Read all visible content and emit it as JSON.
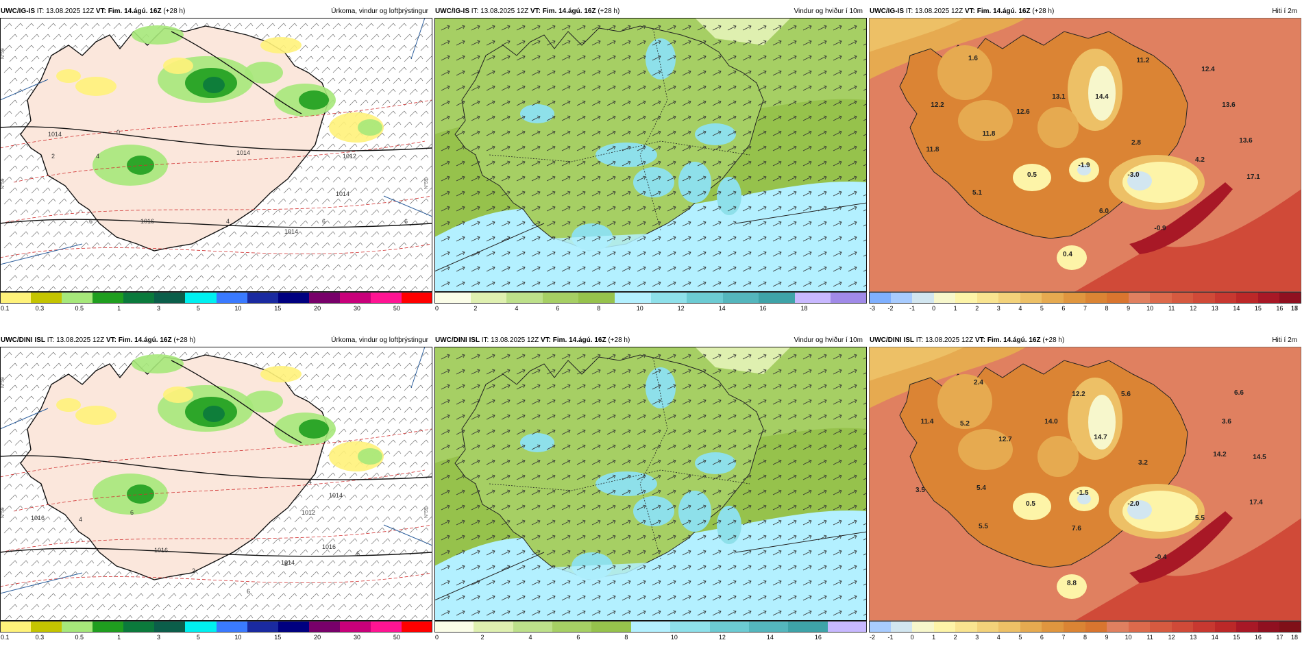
{
  "panels": [
    {
      "id": "igis-precip",
      "model": "UWC/IG-IS",
      "it_label": "IT:",
      "it_value": "13.08.2025 12Z",
      "vt_label": "VT:",
      "vt_value": "Fim. 14.ágú. 16Z",
      "lead": "(+28 h)",
      "title": "Úrkoma, vindur og loftþrýstingur",
      "kind": "precip",
      "isobar_labels": [
        "1014",
        "1014",
        "1016",
        "1014",
        "1012",
        "1014"
      ],
      "temp_contours": [
        "2",
        "4",
        "6",
        "4",
        "6",
        "0",
        "6"
      ],
      "lat_labels": [
        "N°59",
        "N°59",
        "N°59"
      ],
      "colorbar": {
        "colors": [
          "#fff27a",
          "#c4c400",
          "#a6e87a",
          "#1f9e1f",
          "#0b7a3c",
          "#0b5e4a",
          "#00f0f0",
          "#3a7aff",
          "#1a2aa0",
          "#000080",
          "#78006a",
          "#c8007a",
          "#ff1493",
          "#ff0000"
        ],
        "ticks": [
          "0.1",
          "0.3",
          "0.5",
          "1",
          "3",
          "5",
          "10",
          "15",
          "20",
          "30",
          "50"
        ]
      }
    },
    {
      "id": "igis-wind",
      "model": "UWC/IG-IS",
      "it_label": "IT:",
      "it_value": "13.08.2025 12Z",
      "vt_label": "VT:",
      "vt_value": "Fim. 14.ágú. 16Z",
      "lead": "(+28 h)",
      "title": "Vindur og hviður í 10m",
      "kind": "wind",
      "colorbar": {
        "colors": [
          "#fbfde8",
          "#dff0b0",
          "#bde08a",
          "#a6cf64",
          "#96c24c",
          "#b3f0ff",
          "#8ee0ea",
          "#6ccbd3",
          "#54b6bd",
          "#3ea3a8",
          "#c8b8ff",
          "#a08ae8"
        ],
        "ticks": [
          "0",
          "2",
          "4",
          "6",
          "8",
          "10",
          "12",
          "14",
          "16",
          "18"
        ]
      }
    },
    {
      "id": "igis-temp",
      "model": "UWC/IG-IS",
      "it_label": "IT:",
      "it_value": "13.08.2025 12Z",
      "vt_label": "VT:",
      "vt_value": "Fim. 14.ágú. 16Z",
      "lead": "(+28 h)",
      "title": "Hiti í 2m",
      "kind": "temp",
      "temp_labels": [
        "1.6",
        "11.2",
        "12.4",
        "12.2",
        "13.1",
        "14.4",
        "12.6",
        "13.6",
        "11.8",
        "2.8",
        "13.6",
        "11.8",
        "4.2",
        "0.5",
        "-1.9",
        "-3.0",
        "17.1",
        "5.1",
        "6.0",
        "-0.9",
        "0.4"
      ],
      "colorbar": {
        "colors": [
          "#7fb0ff",
          "#a8ccff",
          "#d2e6f0",
          "#f7f7cc",
          "#fdf4a8",
          "#f9e490",
          "#f3d27a",
          "#edc066",
          "#e6aa50",
          "#e0963f",
          "#db8434",
          "#d9752f",
          "#e08060",
          "#dd6a4c",
          "#d65a40",
          "#d04a38",
          "#c83830",
          "#bc2828",
          "#a81826",
          "#901020"
        ],
        "ticks": [
          "-3",
          "-2",
          "-1",
          "0",
          "1",
          "2",
          "3",
          "4",
          "5",
          "6",
          "7",
          "8",
          "9",
          "10",
          "11",
          "12",
          "13",
          "14",
          "15",
          "16",
          "17",
          "18"
        ]
      }
    },
    {
      "id": "dini-precip",
      "model": "UWC/DINI ISL",
      "it_label": "IT:",
      "it_value": "13.08.2025 12Z",
      "vt_label": "VT:",
      "vt_value": "Fim. 14.ágú. 16Z",
      "lead": "(+28 h)",
      "title": "Úrkoma, vindur og loftþrýstingur",
      "kind": "precip",
      "isobar_labels": [
        "1016",
        "1016",
        "1014",
        "1012",
        "1014",
        "1016"
      ],
      "temp_contours": [
        "4",
        "6",
        "6",
        "2",
        "6",
        "4",
        "6"
      ],
      "lat_labels": [
        "N°59",
        "N°59",
        "N°59"
      ],
      "colorbar": {
        "colors": [
          "#fff27a",
          "#c4c400",
          "#a6e87a",
          "#1f9e1f",
          "#0b7a3c",
          "#0b5e4a",
          "#00f0f0",
          "#3a7aff",
          "#1a2aa0",
          "#000080",
          "#78006a",
          "#c8007a",
          "#ff1493",
          "#ff0000"
        ],
        "ticks": [
          "0.1",
          "0.3",
          "0.5",
          "1",
          "3",
          "5",
          "10",
          "15",
          "20",
          "30",
          "50"
        ]
      }
    },
    {
      "id": "dini-wind",
      "model": "UWC/DINI ISL",
      "it_label": "IT:",
      "it_value": "13.08.2025 12Z",
      "vt_label": "VT:",
      "vt_value": "Fim. 14.ágú. 16Z",
      "lead": "(+28 h)",
      "title": "Vindur og hviður í 10m",
      "kind": "wind",
      "colorbar": {
        "colors": [
          "#fbfde8",
          "#dff0b0",
          "#bde08a",
          "#a6cf64",
          "#96c24c",
          "#b3f0ff",
          "#8ee0ea",
          "#6ccbd3",
          "#54b6bd",
          "#3ea3a8",
          "#c8b8ff"
        ],
        "ticks": [
          "0",
          "2",
          "4",
          "6",
          "8",
          "10",
          "12",
          "14",
          "16"
        ]
      }
    },
    {
      "id": "dini-temp",
      "model": "UWC/DINI ISL",
      "it_label": "IT:",
      "it_value": "13.08.2025 12Z",
      "vt_label": "VT:",
      "vt_value": "Fim. 14.ágú. 16Z",
      "lead": "(+28 h)",
      "title": "Hiti í 2m",
      "kind": "temp",
      "temp_labels": [
        "2.4",
        "6.6",
        "12.2",
        "5.6",
        "11.4",
        "5.2",
        "14.0",
        "3.6",
        "12.7",
        "14.7",
        "3.2",
        "14.2",
        "14.5",
        "3.5",
        "5.4",
        "0.5",
        "-1.5",
        "-2.0",
        "17.4",
        "5.5",
        "7.6",
        "5.5",
        "-0.4",
        "8.8"
      ],
      "colorbar": {
        "colors": [
          "#a8ccff",
          "#d2e6f0",
          "#f7f7cc",
          "#fdf4a8",
          "#f9e490",
          "#f3d27a",
          "#edc066",
          "#e6aa50",
          "#e0963f",
          "#db8434",
          "#d9752f",
          "#e08060",
          "#dd6a4c",
          "#d65a40",
          "#d04a38",
          "#c83830",
          "#bc2828",
          "#a81826",
          "#901020",
          "#801018"
        ],
        "ticks": [
          "-2",
          "-1",
          "0",
          "1",
          "2",
          "3",
          "4",
          "5",
          "6",
          "7",
          "8",
          "9",
          "10",
          "11",
          "12",
          "13",
          "14",
          "15",
          "16",
          "17",
          "18"
        ]
      }
    }
  ]
}
